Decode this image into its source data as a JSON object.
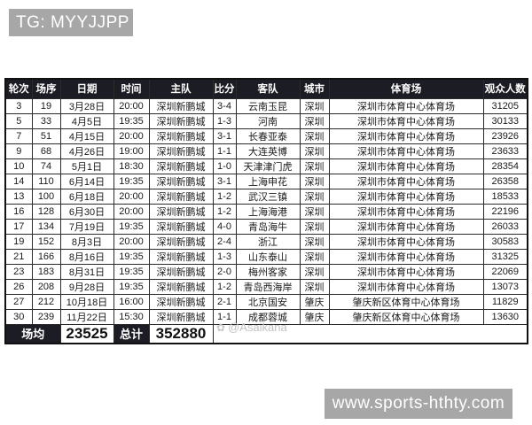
{
  "badges": {
    "tg": "TG: MYYJJPP",
    "website": "www.sports-hthty.com"
  },
  "watermark": {
    "icon": "✿",
    "text": "@Asaikana"
  },
  "colors": {
    "header_bg": "#1c1c24",
    "badge_bg": "#a7a7a7",
    "watermark_gray": "#c2c2c2"
  },
  "table": {
    "headers": [
      "轮次",
      "场序",
      "日期",
      "时间",
      "主队",
      "比分",
      "客队",
      "城市",
      "体育场",
      "观众人数"
    ],
    "rows": [
      [
        "3",
        "19",
        "3月28日",
        "20:00",
        "深圳新鹏城",
        "3-4",
        "云南玉昆",
        "深圳",
        "深圳市体育中心体育场",
        "31205"
      ],
      [
        "5",
        "33",
        "4月5日",
        "19:35",
        "深圳新鹏城",
        "1-3",
        "河南",
        "深圳",
        "深圳市体育中心体育场",
        "30133"
      ],
      [
        "7",
        "51",
        "4月15日",
        "20:00",
        "深圳新鹏城",
        "3-1",
        "长春亚泰",
        "深圳",
        "深圳市体育中心体育场",
        "23926"
      ],
      [
        "9",
        "68",
        "4月26日",
        "19:00",
        "深圳新鹏城",
        "1-1",
        "大连英博",
        "深圳",
        "深圳市体育中心体育场",
        "23633"
      ],
      [
        "10",
        "74",
        "5月1日",
        "18:30",
        "深圳新鹏城",
        "1-0",
        "天津津门虎",
        "深圳",
        "深圳市体育中心体育场",
        "28354"
      ],
      [
        "14",
        "110",
        "6月14日",
        "19:35",
        "深圳新鹏城",
        "3-1",
        "上海申花",
        "深圳",
        "深圳市体育中心体育场",
        "26358"
      ],
      [
        "13",
        "100",
        "6月18日",
        "20:00",
        "深圳新鹏城",
        "1-2",
        "武汉三镇",
        "深圳",
        "深圳市体育中心体育场",
        "18533"
      ],
      [
        "16",
        "128",
        "6月30日",
        "20:00",
        "深圳新鹏城",
        "1-2",
        "上海海港",
        "深圳",
        "深圳市体育中心体育场",
        "22196"
      ],
      [
        "17",
        "134",
        "7月19日",
        "19:35",
        "深圳新鹏城",
        "4-0",
        "青岛海牛",
        "深圳",
        "深圳市体育中心体育场",
        "26033"
      ],
      [
        "19",
        "152",
        "8月3日",
        "20:00",
        "深圳新鹏城",
        "2-4",
        "浙江",
        "深圳",
        "深圳市体育中心体育场",
        "30583"
      ],
      [
        "21",
        "166",
        "8月16日",
        "19:35",
        "深圳新鹏城",
        "1-3",
        "山东泰山",
        "深圳",
        "深圳市体育中心体育场",
        "31325"
      ],
      [
        "23",
        "183",
        "8月31日",
        "19:35",
        "深圳新鹏城",
        "2-0",
        "梅州客家",
        "深圳",
        "深圳市体育中心体育场",
        "22069"
      ],
      [
        "26",
        "208",
        "9月28日",
        "19:35",
        "深圳新鹏城",
        "1-2",
        "青岛西海岸",
        "深圳",
        "深圳市体育中心体育场",
        "13073"
      ],
      [
        "27",
        "212",
        "10月18日",
        "16:00",
        "深圳新鹏城",
        "2-1",
        "北京国安",
        "肇庆",
        "肇庆新区体育中心体育场",
        "11829"
      ],
      [
        "30",
        "239",
        "11月22日",
        "15:30",
        "深圳新鹏城",
        "1-1",
        "成都蓉城",
        "肇庆",
        "肇庆新区体育中心体育场",
        "13630"
      ]
    ],
    "footer": {
      "avg_label": "场均",
      "avg_value": "23525",
      "total_label": "总计",
      "total_value": "352880"
    }
  },
  "chart_data": {
    "type": "table",
    "columns": [
      "轮次",
      "场序",
      "日期",
      "时间",
      "主队",
      "比分",
      "客队",
      "城市",
      "体育场",
      "观众人数"
    ],
    "rows": [
      [
        3,
        19,
        "3月28日",
        "20:00",
        "深圳新鹏城",
        "3-4",
        "云南玉昆",
        "深圳",
        "深圳市体育中心体育场",
        31205
      ],
      [
        5,
        33,
        "4月5日",
        "19:35",
        "深圳新鹏城",
        "1-3",
        "河南",
        "深圳",
        "深圳市体育中心体育场",
        30133
      ],
      [
        7,
        51,
        "4月15日",
        "20:00",
        "深圳新鹏城",
        "3-1",
        "长春亚泰",
        "深圳",
        "深圳市体育中心体育场",
        23926
      ],
      [
        9,
        68,
        "4月26日",
        "19:00",
        "深圳新鹏城",
        "1-1",
        "大连英博",
        "深圳",
        "深圳市体育中心体育场",
        23633
      ],
      [
        10,
        74,
        "5月1日",
        "18:30",
        "深圳新鹏城",
        "1-0",
        "天津津门虎",
        "深圳",
        "深圳市体育中心体育场",
        28354
      ],
      [
        14,
        110,
        "6月14日",
        "19:35",
        "深圳新鹏城",
        "3-1",
        "上海申花",
        "深圳",
        "深圳市体育中心体育场",
        26358
      ],
      [
        13,
        100,
        "6月18日",
        "20:00",
        "深圳新鹏城",
        "1-2",
        "武汉三镇",
        "深圳",
        "深圳市体育中心体育场",
        18533
      ],
      [
        16,
        128,
        "6月30日",
        "20:00",
        "深圳新鹏城",
        "1-2",
        "上海海港",
        "深圳",
        "深圳市体育中心体育场",
        22196
      ],
      [
        17,
        134,
        "7月19日",
        "19:35",
        "深圳新鹏城",
        "4-0",
        "青岛海牛",
        "深圳",
        "深圳市体育中心体育场",
        26033
      ],
      [
        19,
        152,
        "8月3日",
        "20:00",
        "深圳新鹏城",
        "2-4",
        "浙江",
        "深圳",
        "深圳市体育中心体育场",
        30583
      ],
      [
        21,
        166,
        "8月16日",
        "19:35",
        "深圳新鹏城",
        "1-3",
        "山东泰山",
        "深圳",
        "深圳市体育中心体育场",
        31325
      ],
      [
        23,
        183,
        "8月31日",
        "19:35",
        "深圳新鹏城",
        "2-0",
        "梅州客家",
        "深圳",
        "深圳市体育中心体育场",
        22069
      ],
      [
        26,
        208,
        "9月28日",
        "19:35",
        "深圳新鹏城",
        "1-2",
        "青岛西海岸",
        "深圳",
        "深圳市体育中心体育场",
        13073
      ],
      [
        27,
        212,
        "10月18日",
        "16:00",
        "深圳新鹏城",
        "2-1",
        "北京国安",
        "肇庆",
        "肇庆新区体育中心体育场",
        11829
      ],
      [
        30,
        239,
        "11月22日",
        "15:30",
        "深圳新鹏城",
        "1-1",
        "成都蓉城",
        "肇庆",
        "肇庆新区体育中心体育场",
        13630
      ]
    ],
    "summary": {
      "场均": 23525,
      "总计": 352880
    }
  }
}
